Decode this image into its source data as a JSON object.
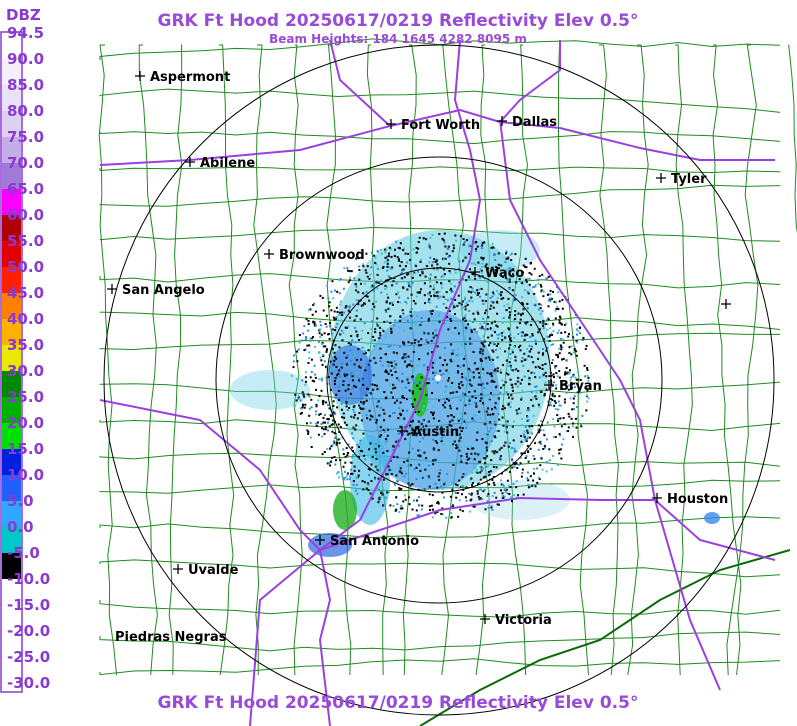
{
  "header": {
    "title": "GRK Ft Hood 20250617/0219 Reflectivity Elev 0.5°",
    "subtitle": "Beam Heights: 184 1645 4282 8095 m"
  },
  "legend": {
    "unit": "DBZ",
    "levels": [
      {
        "label": "94.5",
        "color": "#ffffff"
      },
      {
        "label": "90.0",
        "color": "#f4f0fa"
      },
      {
        "label": "85.0",
        "color": "#eae2f6"
      },
      {
        "label": "80.0",
        "color": "#ddd0f0"
      },
      {
        "label": "75.0",
        "color": "#c4aee6"
      },
      {
        "label": "70.0",
        "color": "#a07ad6"
      },
      {
        "label": "65.0",
        "color": "#ff00ff"
      },
      {
        "label": "60.0",
        "color": "#b00000"
      },
      {
        "label": "55.0",
        "color": "#e00000"
      },
      {
        "label": "50.0",
        "color": "#ff2000"
      },
      {
        "label": "45.0",
        "color": "#ff8000"
      },
      {
        "label": "40.0",
        "color": "#ffb000"
      },
      {
        "label": "35.0",
        "color": "#e8e800"
      },
      {
        "label": "30.0",
        "color": "#008800"
      },
      {
        "label": "25.0",
        "color": "#00b000"
      },
      {
        "label": "20.0",
        "color": "#00e000"
      },
      {
        "label": "15.0",
        "color": "#0020e0"
      },
      {
        "label": "10.0",
        "color": "#2060ff"
      },
      {
        "label": "5.0",
        "color": "#30a8ff"
      },
      {
        "label": "0.0",
        "color": "#00c8c8"
      },
      {
        "label": "-5.0",
        "color": "#000000"
      },
      {
        "label": "-10.0",
        "color": "#ffffff"
      },
      {
        "label": "-15.0",
        "color": "#ffffff"
      },
      {
        "label": "-20.0",
        "color": "#ffffff"
      },
      {
        "label": "-25.0",
        "color": "#ffffff"
      },
      {
        "label": "-30.0",
        "color": "#ffffff"
      }
    ]
  },
  "cities": [
    {
      "label": "Aspermont"
    },
    {
      "label": "Fort Worth"
    },
    {
      "label": "Dallas"
    },
    {
      "label": "Abilene"
    },
    {
      "label": "Tyler"
    },
    {
      "label": "Brownwood"
    },
    {
      "label": "Waco"
    },
    {
      "label": "San Angelo"
    },
    {
      "label": "Bryan"
    },
    {
      "label": "Austin"
    },
    {
      "label": "Houston"
    },
    {
      "label": "San Antonio"
    },
    {
      "label": "Uvalde"
    },
    {
      "label": "Victoria"
    },
    {
      "label": "Piedras Negras"
    }
  ]
}
